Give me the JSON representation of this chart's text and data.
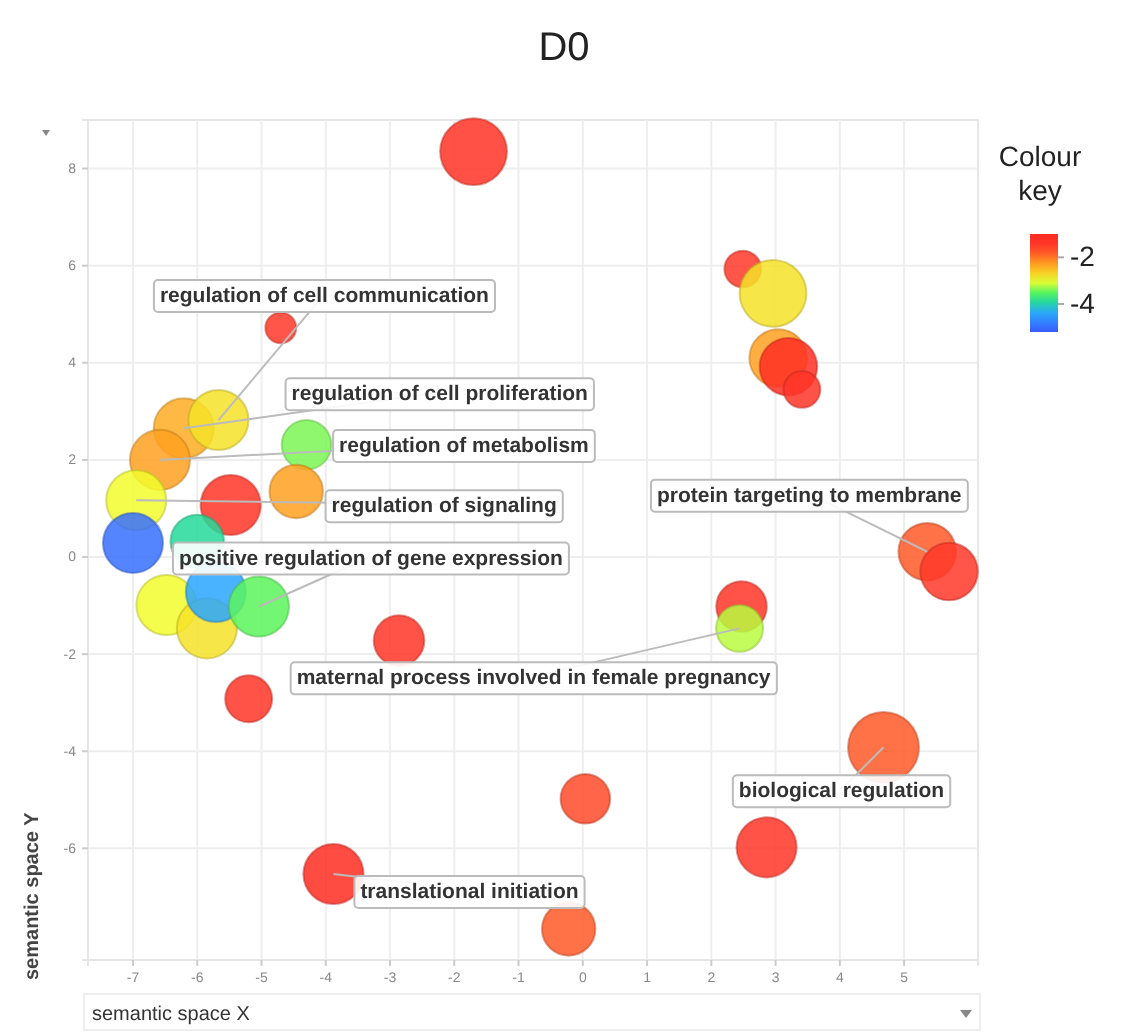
{
  "chart_data": {
    "type": "bubble",
    "title": "D0",
    "xlabel": "semantic space X",
    "ylabel": "semantic space Y",
    "clabel": "Colour key",
    "xlim": [
      -7.7,
      6.15
    ],
    "xticks": [
      -7,
      -6,
      -5,
      -4,
      -3,
      -2,
      -1,
      0,
      1,
      2,
      3,
      4,
      5
    ],
    "ylim": [
      -8.3,
      9
    ],
    "yticks": [
      -6,
      -4,
      -2,
      0,
      2,
      4,
      6,
      8
    ],
    "clim": [
      -5.2,
      -1
    ],
    "cticks": [
      -2,
      -4
    ],
    "grid": true,
    "x": [
      -1.7,
      -4.7,
      -6.21,
      -5.67,
      -6.58,
      -4.3,
      -5.48,
      -4.46,
      -6.95,
      -7.0,
      -6.0,
      -6.48,
      -5.85,
      -5.71,
      -5.04,
      -2.86,
      -5.2,
      0.04,
      -3.88,
      -0.22,
      2.49,
      2.96,
      3.04,
      3.2,
      3.41,
      5.36,
      5.7,
      2.47,
      2.44,
      4.68,
      2.86
    ],
    "values": [
      8.35,
      4.72,
      2.65,
      2.82,
      2.0,
      2.31,
      1.07,
      1.35,
      1.17,
      0.29,
      0.32,
      -0.99,
      -1.47,
      -0.72,
      -1.02,
      -1.72,
      -2.92,
      -4.98,
      -6.53,
      -7.66,
      5.93,
      5.43,
      4.1,
      3.92,
      3.45,
      0.11,
      -0.3,
      -1.02,
      -1.47,
      -3.92,
      -5.98
    ],
    "sizes": [
      0.89,
      0.19,
      0.72,
      0.72,
      0.72,
      0.49,
      0.72,
      0.57,
      0.72,
      0.72,
      0.57,
      0.72,
      0.72,
      0.72,
      0.72,
      0.51,
      0.44,
      0.49,
      0.72,
      0.57,
      0.27,
      0.89,
      0.66,
      0.66,
      0.27,
      0.66,
      0.66,
      0.51,
      0.44,
      1,
      0.72
    ],
    "cvalues": [
      -1.3,
      -1.5,
      -2.4,
      -2.8,
      -2.3,
      -3.4,
      -1.4,
      -2.3,
      -3.0,
      -5.0,
      -3.9,
      -3.0,
      -2.8,
      -4.4,
      -3.5,
      -1.4,
      -1.4,
      -1.7,
      -1.1,
      -1.8,
      -1.5,
      -2.8,
      -2.3,
      -1.2,
      -1.4,
      -1.8,
      -1.5,
      -1.4,
      -3.2,
      -1.8,
      -1.4
    ],
    "annotations": [
      {
        "text": "regulation of cell communication",
        "x": -5.67,
        "y": 2.82
      },
      {
        "text": "regulation of cell proliferation",
        "x": -6.21,
        "y": 2.65
      },
      {
        "text": "regulation of metabolism",
        "x": -6.58,
        "y": 2.0
      },
      {
        "text": "regulation of signaling",
        "x": -6.95,
        "y": 1.17
      },
      {
        "text": "positive regulation of gene expression",
        "x": -5.04,
        "y": -1.02
      },
      {
        "text": "maternal process involved in female pregnancy",
        "x": 2.44,
        "y": -1.47
      },
      {
        "text": "protein targeting to membrane",
        "x": 5.36,
        "y": 0.11
      },
      {
        "text": "biological regulation",
        "x": 4.68,
        "y": -3.92
      },
      {
        "text": "translational initiation",
        "x": -3.88,
        "y": -6.53
      }
    ]
  }
}
